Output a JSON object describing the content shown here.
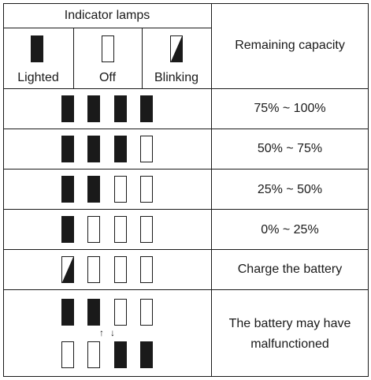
{
  "header": {
    "indicator_lamps": "Indicator lamps",
    "legend": [
      {
        "label": "Lighted",
        "state": "lit"
      },
      {
        "label": "Off",
        "state": "off"
      },
      {
        "label": "Blinking",
        "state": "blink"
      }
    ],
    "remaining_capacity": "Remaining capacity"
  },
  "rows": [
    {
      "lamps": [
        "lit",
        "lit",
        "lit",
        "lit"
      ],
      "text": "75% ~ 100%"
    },
    {
      "lamps": [
        "lit",
        "lit",
        "lit",
        "off"
      ],
      "text": "50% ~ 75%"
    },
    {
      "lamps": [
        "lit",
        "lit",
        "off",
        "off"
      ],
      "text": "25% ~ 50%"
    },
    {
      "lamps": [
        "lit",
        "off",
        "off",
        "off"
      ],
      "text": "0% ~ 25%"
    },
    {
      "lamps": [
        "blink",
        "off",
        "off",
        "off"
      ],
      "text": "Charge the battery"
    },
    {
      "lamps_top": [
        "lit",
        "lit",
        "off",
        "off"
      ],
      "lamps_bottom": [
        "off",
        "off",
        "lit",
        "lit"
      ],
      "arrows": [
        "↑",
        "↓"
      ],
      "text_line1": "The battery may have",
      "text_line2": "malfunctioned"
    }
  ],
  "colors": {
    "ink": "#1a1a1a",
    "background": "#ffffff"
  }
}
